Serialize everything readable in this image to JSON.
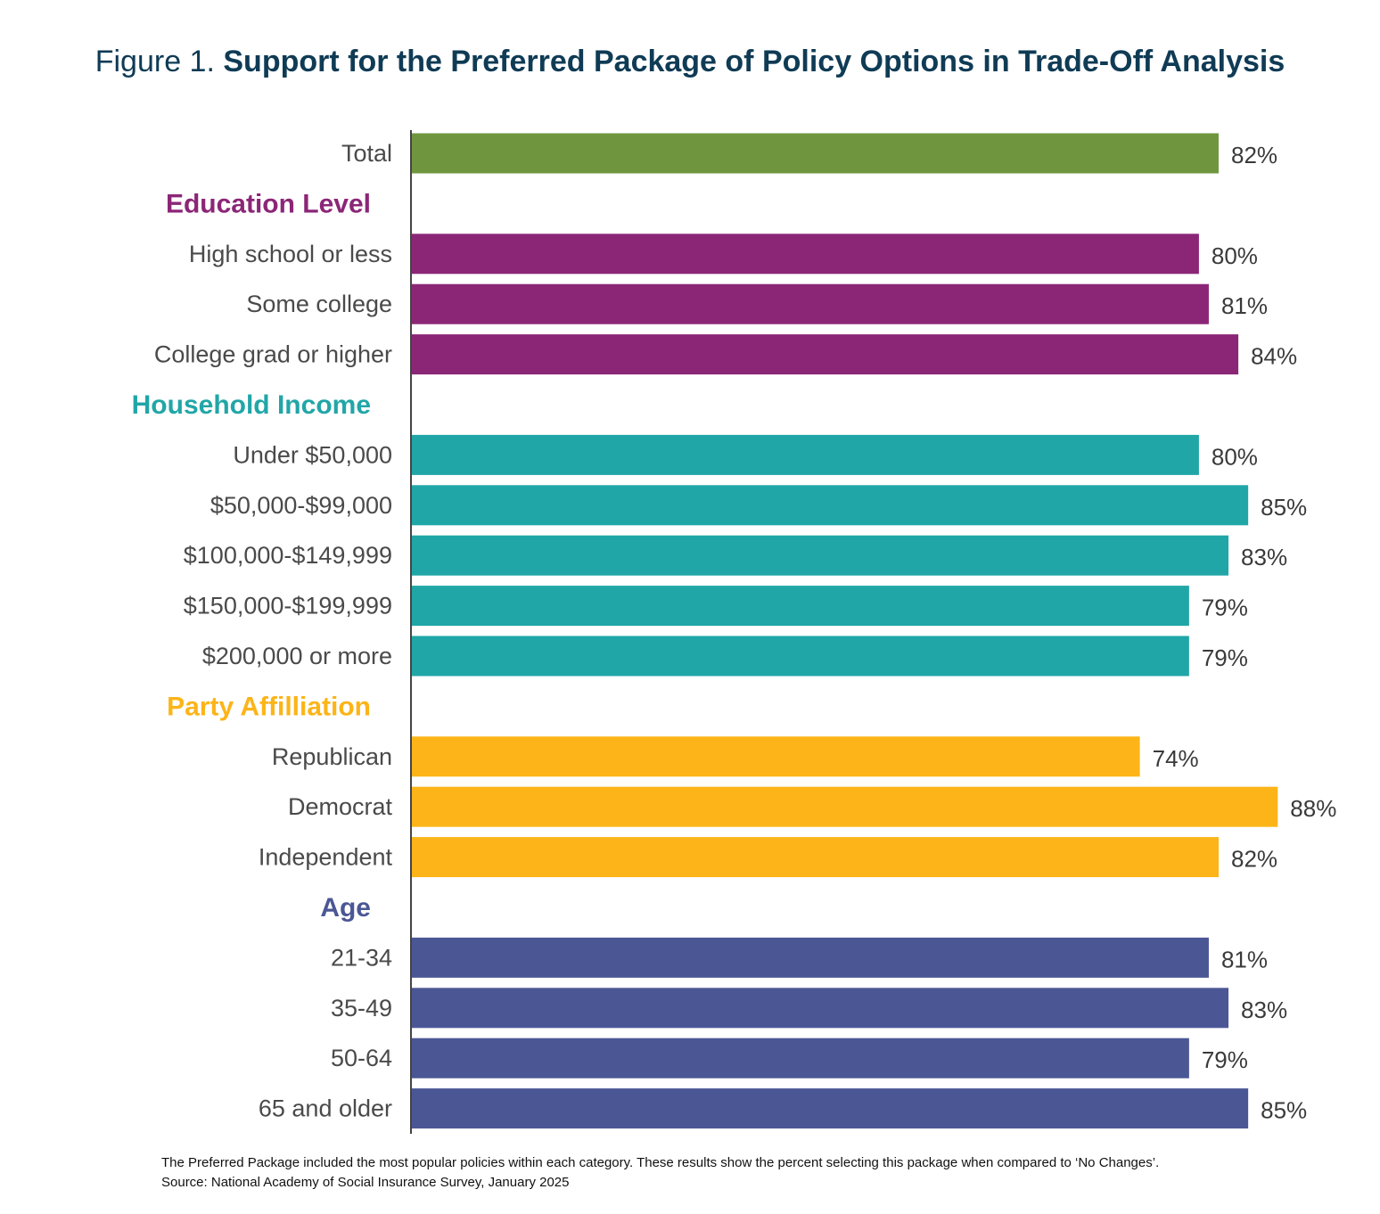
{
  "title": {
    "prefix": "Figure 1.",
    "main": "Support for the Preferred Package of Policy Options in Trade-Off Analysis"
  },
  "footnote": {
    "line1": "The Preferred Package included the most popular policies within each category. These results show the percent selecting this package when compared to ‘No Changes’.",
    "line2": "Source: National Academy of Social Insurance Survey, January 2025"
  },
  "chart_data": {
    "type": "bar",
    "orientation": "horizontal",
    "unit": "%",
    "xlim": [
      0,
      100
    ],
    "grid": false,
    "rows": [
      {
        "kind": "bar",
        "label": "Total",
        "value": 82,
        "color": "#6f963e"
      },
      {
        "kind": "group",
        "label": "Education Level",
        "color": "#8b2677"
      },
      {
        "kind": "bar",
        "label": "High school or less",
        "value": 80,
        "color": "#8b2677"
      },
      {
        "kind": "bar",
        "label": "Some college",
        "value": 81,
        "color": "#8b2677"
      },
      {
        "kind": "bar",
        "label": "College grad or higher",
        "value": 84,
        "color": "#8b2677"
      },
      {
        "kind": "group",
        "label": "Household Income",
        "color": "#21a6a7"
      },
      {
        "kind": "bar",
        "label": "Under $50,000",
        "value": 80,
        "color": "#21a6a7"
      },
      {
        "kind": "bar",
        "label": "$50,000-$99,000",
        "value": 85,
        "color": "#21a6a7"
      },
      {
        "kind": "bar",
        "label": "$100,000-$149,999",
        "value": 83,
        "color": "#21a6a7"
      },
      {
        "kind": "bar",
        "label": "$150,000-$199,999",
        "value": 79,
        "color": "#21a6a7"
      },
      {
        "kind": "bar",
        "label": "$200,000 or more",
        "value": 79,
        "color": "#21a6a7"
      },
      {
        "kind": "group",
        "label": "Party Affilliation",
        "color": "#fcb418"
      },
      {
        "kind": "bar",
        "label": "Republican",
        "value": 74,
        "color": "#fcb418"
      },
      {
        "kind": "bar",
        "label": "Democrat",
        "value": 88,
        "color": "#fcb418"
      },
      {
        "kind": "bar",
        "label": "Independent",
        "value": 82,
        "color": "#fcb418"
      },
      {
        "kind": "group",
        "label": "Age",
        "color": "#4b5795"
      },
      {
        "kind": "bar",
        "label": "21-34",
        "value": 81,
        "color": "#4b5795"
      },
      {
        "kind": "bar",
        "label": "35-49",
        "value": 83,
        "color": "#4b5795"
      },
      {
        "kind": "bar",
        "label": "50-64",
        "value": 79,
        "color": "#4b5795"
      },
      {
        "kind": "bar",
        "label": "65 and older",
        "value": 85,
        "color": "#4b5795"
      }
    ]
  }
}
